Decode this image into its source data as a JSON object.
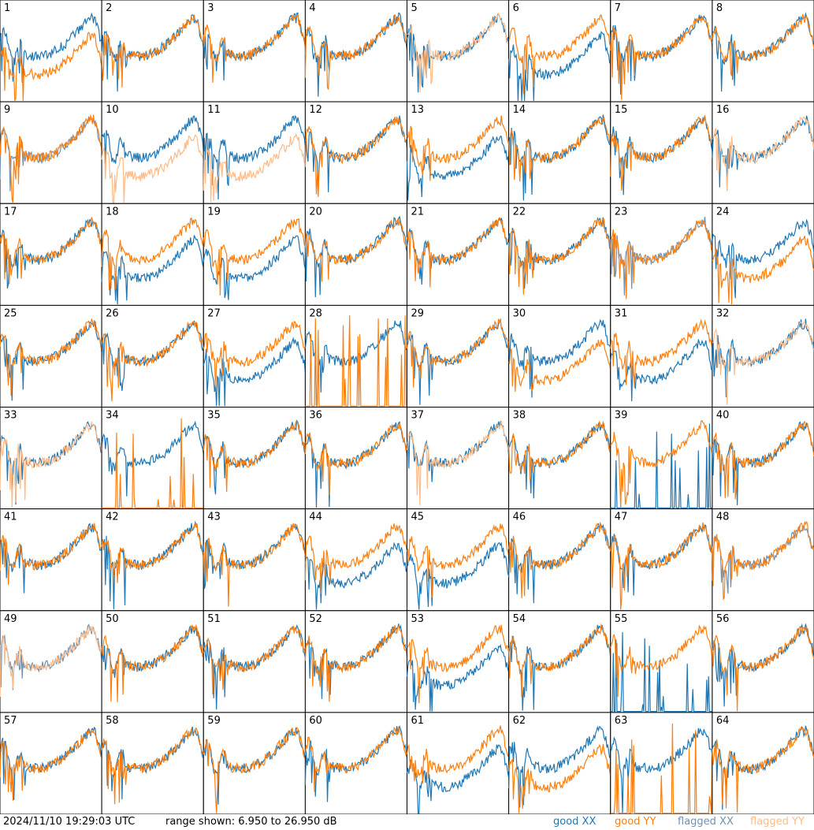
{
  "chart_data": {
    "type": "line",
    "panel_count": 64,
    "grid": {
      "rows": 8,
      "cols": 8
    },
    "panels": [
      {
        "id": 1
      },
      {
        "id": 2
      },
      {
        "id": 3
      },
      {
        "id": 4
      },
      {
        "id": 5
      },
      {
        "id": 6
      },
      {
        "id": 7
      },
      {
        "id": 8
      },
      {
        "id": 9
      },
      {
        "id": 10
      },
      {
        "id": 11
      },
      {
        "id": 12
      },
      {
        "id": 13
      },
      {
        "id": 14
      },
      {
        "id": 15
      },
      {
        "id": 16
      },
      {
        "id": 17
      },
      {
        "id": 18
      },
      {
        "id": 19
      },
      {
        "id": 20
      },
      {
        "id": 21
      },
      {
        "id": 22
      },
      {
        "id": 23
      },
      {
        "id": 24
      },
      {
        "id": 25
      },
      {
        "id": 26
      },
      {
        "id": 27
      },
      {
        "id": 28
      },
      {
        "id": 29
      },
      {
        "id": 30
      },
      {
        "id": 31
      },
      {
        "id": 32
      },
      {
        "id": 33
      },
      {
        "id": 34
      },
      {
        "id": 35
      },
      {
        "id": 36
      },
      {
        "id": 37
      },
      {
        "id": 38
      },
      {
        "id": 39
      },
      {
        "id": 40
      },
      {
        "id": 41
      },
      {
        "id": 42
      },
      {
        "id": 43
      },
      {
        "id": 44
      },
      {
        "id": 45
      },
      {
        "id": 46
      },
      {
        "id": 47
      },
      {
        "id": 48
      },
      {
        "id": 49
      },
      {
        "id": 50
      },
      {
        "id": 51
      },
      {
        "id": 52
      },
      {
        "id": 53
      },
      {
        "id": 54
      },
      {
        "id": 55
      },
      {
        "id": 56
      },
      {
        "id": 57
      },
      {
        "id": 58
      },
      {
        "id": 59
      },
      {
        "id": 60
      },
      {
        "id": 61
      },
      {
        "id": 62
      },
      {
        "id": 63
      },
      {
        "id": 64
      }
    ],
    "ylim": [
      6.95,
      26.95
    ],
    "yunit": "dB",
    "legend": [
      {
        "label": "good XX",
        "color": "#1f77b4"
      },
      {
        "label": "good YY",
        "color": "#ff7f0e"
      },
      {
        "label": "flagged XX",
        "color": "#7090b0"
      },
      {
        "label": "flagged YY",
        "color": "#ffbb88"
      }
    ],
    "flagged": {
      "xx": [
        9,
        23,
        48,
        49
      ],
      "yy": [
        5,
        10,
        11,
        16,
        32,
        33,
        37,
        49
      ]
    }
  },
  "footer": {
    "timestamp": "2024/11/10 19:29:03 UTC",
    "range": "range shown: 6.950 to 26.950 dB"
  },
  "colors": {
    "good_xx": "#1f77b4",
    "good_yy": "#ff7f0e",
    "flagged_xx": "#7090b0",
    "flagged_yy": "#ffbb88"
  }
}
